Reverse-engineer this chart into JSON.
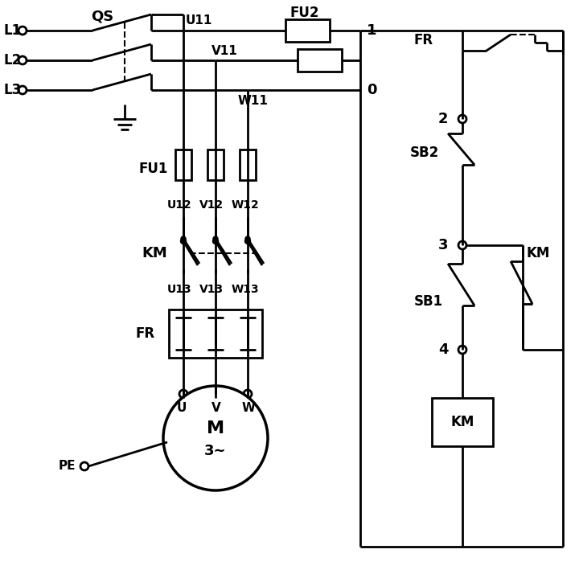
{
  "bg_color": "#ffffff",
  "lc": "#000000",
  "lw": 2.0,
  "fig_w": 7.2,
  "fig_h": 7.14,
  "L1_label": "L1",
  "L2_label": "L2",
  "L3_label": "L3",
  "QS_label": "QS",
  "U11_label": "U11",
  "V11_label": "V11",
  "W11_label": "W11",
  "FU2_label": "FU2",
  "FU1_label": "FU1",
  "U12_label": "U12",
  "V12_label": "V12",
  "W12_label": "W12",
  "KM_label": "KM",
  "U13_label": "U13",
  "V13_label": "V13",
  "W13_label": "W13",
  "FR_label": "FR",
  "U_label": "U",
  "V_label": "V",
  "W_label": "W",
  "M_label": "M",
  "tilde_label": "3~",
  "PE_label": "PE",
  "FR_ctrl_label": "FR",
  "node1_label": "1",
  "node0_label": "0",
  "node2_label": "2",
  "SB2_label": "SB2",
  "node3_label": "3",
  "SB1_label": "SB1",
  "KM_ctrl_label": "KM",
  "node4_label": "4",
  "KM_coil_label": "KM"
}
